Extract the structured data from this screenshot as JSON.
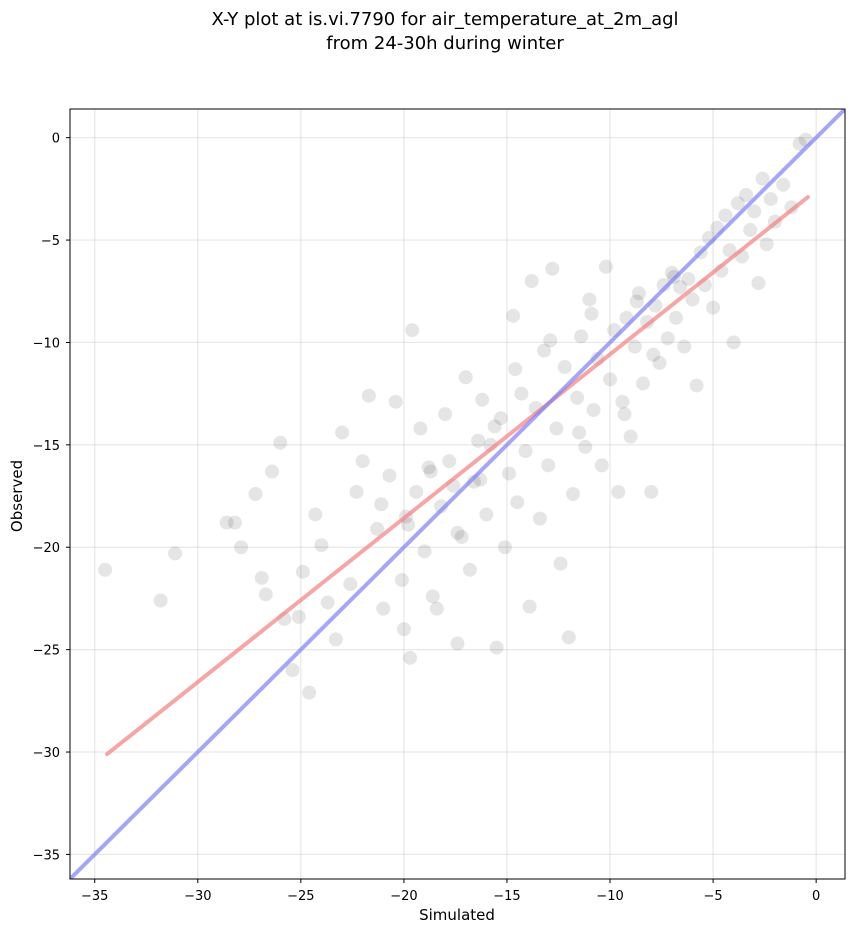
{
  "chart_data": {
    "type": "scatter",
    "title": "X-Y plot at is.vi.7790 for air_temperature_at_2m_agl",
    "subtitle": "from 24-30h during winter",
    "xlabel": "Simulated",
    "ylabel": "Observed",
    "xlim": [
      -36.2,
      1.4
    ],
    "ylim": [
      -36.2,
      1.4
    ],
    "xticks": [
      -35,
      -30,
      -25,
      -20,
      -15,
      -10,
      -5,
      0
    ],
    "yticks": [
      -35,
      -30,
      -25,
      -20,
      -15,
      -10,
      -5,
      0
    ],
    "xtick_labels": [
      "−35",
      "−30",
      "−25",
      "−20",
      "−15",
      "−10",
      "−5",
      "0"
    ],
    "ytick_labels": [
      "−35",
      "−30",
      "−25",
      "−20",
      "−15",
      "−10",
      "−5",
      "0"
    ],
    "grid": true,
    "legend": "none",
    "marker_color": "#000000",
    "marker_alpha": 0.1,
    "points": [
      [
        -34.5,
        -21.1
      ],
      [
        -31.8,
        -22.6
      ],
      [
        -31.1,
        -20.3
      ],
      [
        -28.6,
        -18.8
      ],
      [
        -28.2,
        -18.8
      ],
      [
        -27.9,
        -20.0
      ],
      [
        -27.2,
        -17.4
      ],
      [
        -26.9,
        -21.5
      ],
      [
        -26.7,
        -22.3
      ],
      [
        -26.4,
        -16.3
      ],
      [
        -26.0,
        -14.9
      ],
      [
        -25.8,
        -23.5
      ],
      [
        -25.4,
        -26.0
      ],
      [
        -25.1,
        -23.4
      ],
      [
        -24.9,
        -21.2
      ],
      [
        -24.6,
        -27.1
      ],
      [
        -24.3,
        -18.4
      ],
      [
        -24.0,
        -19.9
      ],
      [
        -23.7,
        -22.7
      ],
      [
        -23.3,
        -24.5
      ],
      [
        -23.0,
        -14.4
      ],
      [
        -22.6,
        -21.8
      ],
      [
        -22.3,
        -17.3
      ],
      [
        -22.0,
        -15.8
      ],
      [
        -21.7,
        -12.6
      ],
      [
        -21.3,
        -19.1
      ],
      [
        -21.0,
        -23.0
      ],
      [
        -20.7,
        -16.5
      ],
      [
        -20.4,
        -12.9
      ],
      [
        -20.1,
        -21.6
      ],
      [
        -20.0,
        -24.0
      ],
      [
        -19.9,
        -18.5
      ],
      [
        -19.8,
        -18.9
      ],
      [
        -19.7,
        -25.4
      ],
      [
        -19.6,
        -9.4
      ],
      [
        -19.4,
        -17.3
      ],
      [
        -19.2,
        -14.2
      ],
      [
        -19.0,
        -20.2
      ],
      [
        -18.8,
        -16.1
      ],
      [
        -18.6,
        -22.4
      ],
      [
        -18.4,
        -23.0
      ],
      [
        -18.2,
        -18.0
      ],
      [
        -18.0,
        -13.5
      ],
      [
        -17.8,
        -15.8
      ],
      [
        -17.6,
        -17.0
      ],
      [
        -17.4,
        -24.7
      ],
      [
        -17.2,
        -19.5
      ],
      [
        -17.0,
        -11.7
      ],
      [
        -16.8,
        -21.1
      ],
      [
        -16.6,
        -16.8
      ],
      [
        -16.4,
        -14.8
      ],
      [
        -16.2,
        -12.8
      ],
      [
        -16.0,
        -18.4
      ],
      [
        -15.8,
        -15.0
      ],
      [
        -15.6,
        -14.1
      ],
      [
        -15.5,
        -24.9
      ],
      [
        -15.3,
        -13.7
      ],
      [
        -15.1,
        -20.0
      ],
      [
        -14.9,
        -16.4
      ],
      [
        -14.7,
        -8.7
      ],
      [
        -14.5,
        -17.8
      ],
      [
        -14.3,
        -12.5
      ],
      [
        -14.1,
        -15.3
      ],
      [
        -13.9,
        -22.9
      ],
      [
        -13.8,
        -7.0
      ],
      [
        -13.6,
        -13.2
      ],
      [
        -13.4,
        -18.6
      ],
      [
        -13.2,
        -10.4
      ],
      [
        -13.0,
        -16.0
      ],
      [
        -12.8,
        -6.4
      ],
      [
        -12.6,
        -14.2
      ],
      [
        -12.4,
        -20.8
      ],
      [
        -12.2,
        -11.2
      ],
      [
        -12.0,
        -24.4
      ],
      [
        -11.8,
        -17.4
      ],
      [
        -11.6,
        -12.7
      ],
      [
        -11.4,
        -9.7
      ],
      [
        -11.2,
        -15.1
      ],
      [
        -11.0,
        -7.9
      ],
      [
        -10.8,
        -13.3
      ],
      [
        -10.6,
        -10.8
      ],
      [
        -10.4,
        -16.0
      ],
      [
        -10.2,
        -6.3
      ],
      [
        -10.0,
        -11.8
      ],
      [
        -9.8,
        -9.4
      ],
      [
        -9.6,
        -17.3
      ],
      [
        -9.4,
        -12.9
      ],
      [
        -9.2,
        -8.8
      ],
      [
        -9.0,
        -14.6
      ],
      [
        -8.8,
        -10.2
      ],
      [
        -8.6,
        -7.6
      ],
      [
        -8.4,
        -12.0
      ],
      [
        -8.2,
        -9.0
      ],
      [
        -8.0,
        -17.3
      ],
      [
        -7.8,
        -8.2
      ],
      [
        -7.6,
        -11.0
      ],
      [
        -7.4,
        -7.2
      ],
      [
        -7.2,
        -9.8
      ],
      [
        -7.0,
        -6.6
      ],
      [
        -6.8,
        -8.8
      ],
      [
        -6.6,
        -7.3
      ],
      [
        -6.4,
        -10.2
      ],
      [
        -6.2,
        -6.9
      ],
      [
        -6.0,
        -7.9
      ],
      [
        -5.8,
        -12.1
      ],
      [
        -5.6,
        -5.6
      ],
      [
        -5.4,
        -7.2
      ],
      [
        -5.2,
        -4.9
      ],
      [
        -5.0,
        -8.3
      ],
      [
        -4.8,
        -4.4
      ],
      [
        -4.6,
        -6.5
      ],
      [
        -4.4,
        -3.8
      ],
      [
        -4.2,
        -5.5
      ],
      [
        -4.0,
        -10.0
      ],
      [
        -3.8,
        -3.2
      ],
      [
        -3.6,
        -5.8
      ],
      [
        -3.4,
        -2.8
      ],
      [
        -3.2,
        -4.5
      ],
      [
        -3.0,
        -3.6
      ],
      [
        -2.8,
        -7.1
      ],
      [
        -2.6,
        -2.0
      ],
      [
        -2.4,
        -5.2
      ],
      [
        -2.2,
        -3.0
      ],
      [
        -2.0,
        -4.1
      ],
      [
        -1.6,
        -2.3
      ],
      [
        -1.2,
        -3.4
      ],
      [
        -0.8,
        -0.3
      ],
      [
        -0.5,
        -0.1
      ],
      [
        -16.3,
        -16.7
      ],
      [
        -17.4,
        -19.3
      ],
      [
        -12.9,
        -9.9
      ],
      [
        -10.9,
        -8.6
      ],
      [
        -9.3,
        -13.5
      ],
      [
        -14.6,
        -11.3
      ],
      [
        -18.7,
        -16.3
      ],
      [
        -21.1,
        -17.9
      ],
      [
        -7.9,
        -10.6
      ],
      [
        -6.9,
        -6.8
      ],
      [
        -8.7,
        -8.0
      ],
      [
        -11.5,
        -14.4
      ]
    ],
    "fit_line": {
      "color": "#f28080",
      "x": [
        -34.4,
        -0.4
      ],
      "y": [
        -30.1,
        -2.9
      ]
    },
    "identity_line": {
      "color": "#8080f2",
      "x": [
        -36.2,
        1.4
      ],
      "y": [
        -36.2,
        1.4
      ]
    }
  }
}
